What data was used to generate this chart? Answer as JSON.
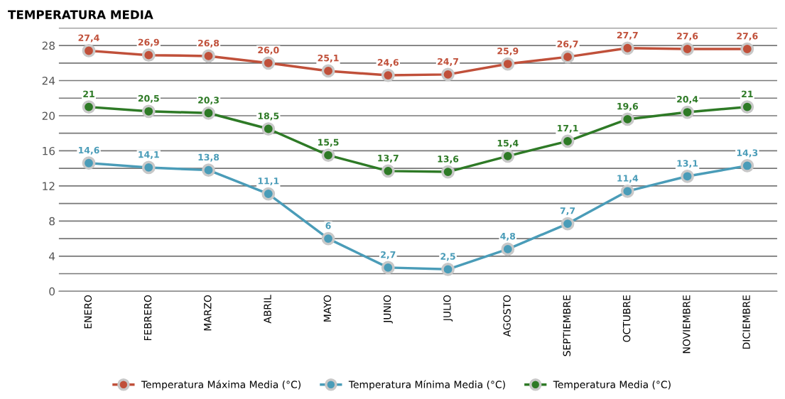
{
  "chart_data": {
    "type": "line",
    "title": "TEMPERATURA MEDIA",
    "categories": [
      "ENERO",
      "FEBRERO",
      "MARZO",
      "ABRIL",
      "MAYO",
      "JUNIO",
      "JULIO",
      "AGOSTO",
      "SEPTIEMBRE",
      "OCTUBRE",
      "NOVIEMBRE",
      "DICIEMBRE"
    ],
    "series": [
      {
        "name": "Temperatura Máxima Media (°C)",
        "color": "#c0503a",
        "values": [
          27.4,
          26.9,
          26.8,
          26.0,
          25.1,
          24.6,
          24.7,
          25.9,
          26.7,
          27.7,
          27.6,
          27.6
        ],
        "value_labels": [
          "27,4",
          "26,9",
          "26,8",
          "26,0",
          "25,1",
          "24,6",
          "24,7",
          "25,9",
          "26,7",
          "27,7",
          "27,6",
          "27,6"
        ]
      },
      {
        "name": "Temperatura Mínima Media (°C)",
        "color": "#4a9cb8",
        "values": [
          14.6,
          14.1,
          13.8,
          11.1,
          6,
          2.7,
          2.5,
          4.8,
          7.7,
          11.4,
          13.1,
          14.3
        ],
        "value_labels": [
          "14,6",
          "14,1",
          "13,8",
          "11,1",
          "6",
          "2,7",
          "2,5",
          "4,8",
          "7,7",
          "11,4",
          "13,1",
          "14,3"
        ]
      },
      {
        "name": "Temperatura Media (°C)",
        "color": "#2e7a26",
        "values": [
          21,
          20.5,
          20.3,
          18.5,
          15.5,
          13.7,
          13.6,
          15.4,
          17.1,
          19.6,
          20.4,
          21
        ],
        "value_labels": [
          "21",
          "20,5",
          "20,3",
          "18,5",
          "15,5",
          "13,7",
          "13,6",
          "15,4",
          "17,1",
          "19,6",
          "20,4",
          "21"
        ]
      }
    ],
    "ylim": [
      0,
      30
    ],
    "yticks": [
      0,
      {
        "value": 2,
        "label": null
      },
      4,
      {
        "value": 6,
        "label": null
      },
      8,
      {
        "value": 10,
        "label": null
      },
      12,
      {
        "value": 14,
        "label": null
      },
      16,
      {
        "value": 18,
        "label": null
      },
      20,
      {
        "value": 22,
        "label": null
      },
      24,
      {
        "value": 26,
        "label": null
      },
      28,
      {
        "value": 30,
        "label": null
      }
    ],
    "grid": "y",
    "legend": "bottom",
    "marker": "circle",
    "line_style": "solid"
  }
}
